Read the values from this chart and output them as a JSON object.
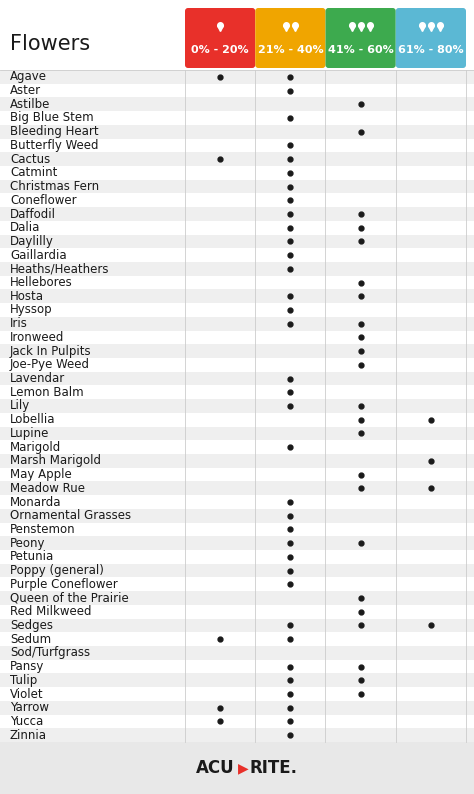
{
  "title": "Flowers",
  "columns": [
    "0% - 20%",
    "21% - 40%",
    "41% - 60%",
    "61% - 80%"
  ],
  "col_colors": [
    "#E8302A",
    "#F0A500",
    "#3DAA4E",
    "#5BB8D4"
  ],
  "plants": [
    "Agave",
    "Aster",
    "Astilbe",
    "Big Blue Stem",
    "Bleeding Heart",
    "Butterfly Weed",
    "Cactus",
    "Catmint",
    "Christmas Fern",
    "Coneflower",
    "Daffodil",
    "Dalia",
    "Daylilly",
    "Gaillardia",
    "Heaths/Heathers",
    "Hellebores",
    "Hosta",
    "Hyssop",
    "Iris",
    "Ironweed",
    "Jack In Pulpits",
    "Joe-Pye Weed",
    "Lavendar",
    "Lemon Balm",
    "Lily",
    "Lobellia",
    "Lupine",
    "Marigold",
    "Marsh Marigold",
    "May Apple",
    "Meadow Rue",
    "Monarda",
    "Ornamental Grasses",
    "Penstemon",
    "Peony",
    "Petunia",
    "Poppy (general)",
    "Purple Coneflower",
    "Queen of the Prairie",
    "Red Milkweed",
    "Sedges",
    "Sedum",
    "Sod/Turfgrass",
    "Pansy",
    "Tulip",
    "Violet",
    "Yarrow",
    "Yucca",
    "Zinnia"
  ],
  "dots": {
    "Agave": [
      1,
      1,
      0,
      0
    ],
    "Aster": [
      0,
      1,
      0,
      0
    ],
    "Astilbe": [
      0,
      0,
      1,
      0
    ],
    "Big Blue Stem": [
      0,
      1,
      0,
      0
    ],
    "Bleeding Heart": [
      0,
      0,
      1,
      0
    ],
    "Butterfly Weed": [
      0,
      1,
      0,
      0
    ],
    "Cactus": [
      1,
      1,
      0,
      0
    ],
    "Catmint": [
      0,
      1,
      0,
      0
    ],
    "Christmas Fern": [
      0,
      1,
      0,
      0
    ],
    "Coneflower": [
      0,
      1,
      0,
      0
    ],
    "Daffodil": [
      0,
      1,
      1,
      0
    ],
    "Dalia": [
      0,
      1,
      1,
      0
    ],
    "Daylilly": [
      0,
      1,
      1,
      0
    ],
    "Gaillardia": [
      0,
      1,
      0,
      0
    ],
    "Heaths/Heathers": [
      0,
      1,
      0,
      0
    ],
    "Hellebores": [
      0,
      0,
      1,
      0
    ],
    "Hosta": [
      0,
      1,
      1,
      0
    ],
    "Hyssop": [
      0,
      1,
      0,
      0
    ],
    "Iris": [
      0,
      1,
      1,
      0
    ],
    "Ironweed": [
      0,
      0,
      1,
      0
    ],
    "Jack In Pulpits": [
      0,
      0,
      1,
      0
    ],
    "Joe-Pye Weed": [
      0,
      0,
      1,
      0
    ],
    "Lavendar": [
      0,
      1,
      0,
      0
    ],
    "Lemon Balm": [
      0,
      1,
      0,
      0
    ],
    "Lily": [
      0,
      1,
      1,
      0
    ],
    "Lobellia": [
      0,
      0,
      1,
      1
    ],
    "Lupine": [
      0,
      0,
      1,
      0
    ],
    "Marigold": [
      0,
      1,
      0,
      0
    ],
    "Marsh Marigold": [
      0,
      0,
      0,
      1
    ],
    "May Apple": [
      0,
      0,
      1,
      0
    ],
    "Meadow Rue": [
      0,
      0,
      1,
      1
    ],
    "Monarda": [
      0,
      1,
      0,
      0
    ],
    "Ornamental Grasses": [
      0,
      1,
      0,
      0
    ],
    "Penstemon": [
      0,
      1,
      0,
      0
    ],
    "Peony": [
      0,
      1,
      1,
      0
    ],
    "Petunia": [
      0,
      1,
      0,
      0
    ],
    "Poppy (general)": [
      0,
      1,
      0,
      0
    ],
    "Purple Coneflower": [
      0,
      1,
      0,
      0
    ],
    "Queen of the Prairie": [
      0,
      0,
      1,
      0
    ],
    "Red Milkweed": [
      0,
      0,
      1,
      0
    ],
    "Sedges": [
      0,
      1,
      1,
      1
    ],
    "Sedum": [
      1,
      1,
      0,
      0
    ],
    "Sod/Turfgrass": [
      0,
      0,
      0,
      0
    ],
    "Pansy": [
      0,
      1,
      1,
      0
    ],
    "Tulip": [
      0,
      1,
      1,
      0
    ],
    "Violet": [
      0,
      1,
      1,
      0
    ],
    "Yarrow": [
      1,
      1,
      0,
      0
    ],
    "Yucca": [
      1,
      1,
      0,
      0
    ],
    "Zinnia": [
      0,
      1,
      0,
      0
    ]
  },
  "bg_color": "#FFFFFF",
  "row_alt_color": "#EFEFEF",
  "row_white_color": "#FFFFFF",
  "dot_color": "#1A1A1A",
  "footer_bg": "#E8E8E8",
  "title_fontsize": 15,
  "label_fontsize": 8.5,
  "header_fontsize": 8,
  "drop_counts": [
    1,
    2,
    3,
    3
  ],
  "fig_width": 4.74,
  "fig_height": 7.94,
  "dpi": 100
}
